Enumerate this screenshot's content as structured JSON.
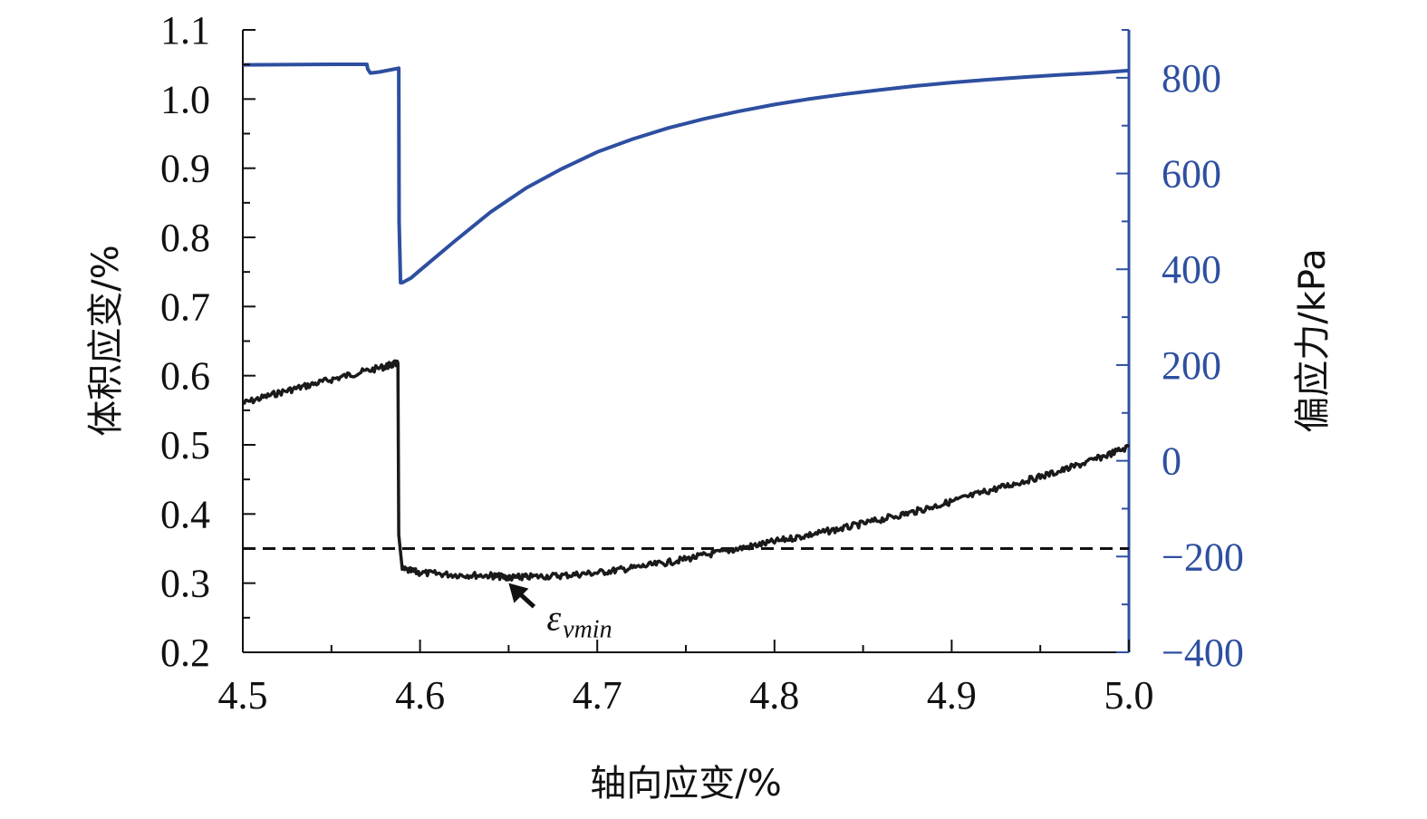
{
  "chart_data": {
    "type": "line",
    "title": "",
    "xlabel": "轴向应变/%",
    "ylabel_left": "体积应变/%",
    "ylabel_right": "偏应力/kPa",
    "xlim": [
      4.5,
      5.0
    ],
    "ylim_left": [
      0.2,
      1.1
    ],
    "ylim_right": [
      -400,
      900
    ],
    "x_ticks": [
      "4.5",
      "4.6",
      "4.7",
      "4.8",
      "4.9",
      "5.0"
    ],
    "y_left_ticks": [
      "0.2",
      "0.3",
      "0.4",
      "0.5",
      "0.6",
      "0.7",
      "0.8",
      "0.9",
      "1.0",
      "1.1"
    ],
    "y_right_ticks": [
      "−400",
      "−200",
      "0",
      "200",
      "400",
      "600",
      "800"
    ],
    "right_axis_color": "#2e4fa0",
    "grid": false,
    "reference_line": {
      "axis": "left",
      "y": 0.35,
      "style": "dashed",
      "color": "#111111"
    },
    "annotation": {
      "text": "ε",
      "subscript": "vmin",
      "x": 4.65,
      "y": 0.3
    },
    "series": [
      {
        "axis": "left",
        "color": "#1a1a1a",
        "x": [
          4.5,
          4.52,
          4.54,
          4.56,
          4.58,
          4.5875,
          4.588,
          4.59,
          4.6,
          4.62,
          4.64,
          4.65,
          4.66,
          4.68,
          4.7,
          4.72,
          4.74,
          4.76,
          4.78,
          4.8,
          4.82,
          4.84,
          4.86,
          4.88,
          4.9,
          4.92,
          4.94,
          4.96,
          4.98,
          5.0
        ],
        "y": [
          0.56,
          0.575,
          0.588,
          0.601,
          0.613,
          0.618,
          0.37,
          0.32,
          0.315,
          0.312,
          0.311,
          0.308,
          0.309,
          0.311,
          0.315,
          0.322,
          0.33,
          0.34,
          0.35,
          0.36,
          0.37,
          0.38,
          0.392,
          0.404,
          0.418,
          0.433,
          0.447,
          0.461,
          0.478,
          0.497
        ]
      },
      {
        "axis": "right",
        "color": "#2e4fa0",
        "x": [
          4.5,
          4.55,
          4.57,
          4.5705,
          4.572,
          4.577,
          4.588,
          4.5882,
          4.589,
          4.59,
          4.595,
          4.6,
          4.62,
          4.64,
          4.66,
          4.68,
          4.7,
          4.72,
          4.74,
          4.76,
          4.78,
          4.8,
          4.82,
          4.84,
          4.86,
          4.88,
          4.9,
          4.92,
          4.94,
          4.96,
          4.98,
          5.0
        ],
        "y": [
          827,
          828,
          828,
          818,
          810,
          812,
          820,
          500,
          372,
          372,
          382,
          398,
          460,
          520,
          570,
          610,
          645,
          672,
          695,
          714,
          730,
          744,
          756,
          766,
          775,
          783,
          790,
          796,
          801,
          806,
          810,
          815
        ]
      }
    ]
  }
}
